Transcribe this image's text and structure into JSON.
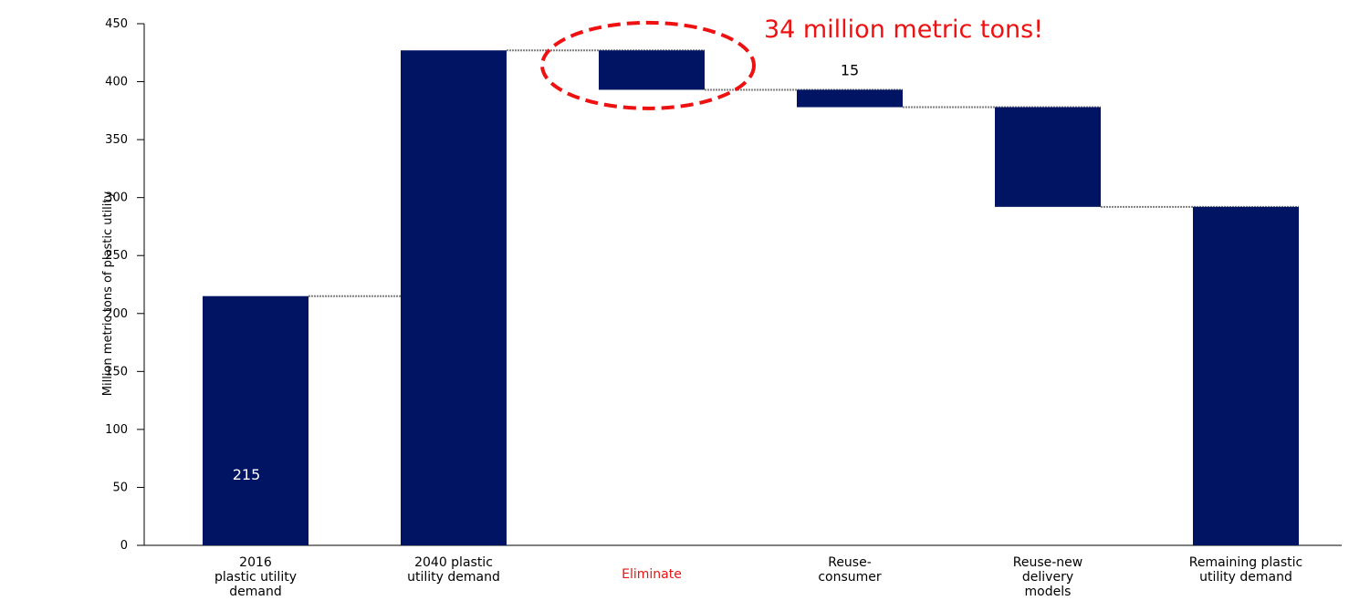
{
  "chart_data": {
    "type": "bar",
    "subtype": "waterfall",
    "ylabel": "Million metric tons of plastic utility",
    "ylim": [
      0,
      450
    ],
    "yticks": [
      0,
      50,
      100,
      150,
      200,
      250,
      300,
      350,
      400,
      450
    ],
    "grid": false,
    "categories": [
      [
        "2016",
        "plastic utility",
        "demand"
      ],
      [
        "2040 plastic",
        "utility demand"
      ],
      [
        "Eliminate"
      ],
      [
        "Reuse-",
        "consumer"
      ],
      [
        "Reuse-new",
        "delivery",
        "models"
      ],
      [
        "Remaining plastic",
        "utility demand"
      ]
    ],
    "bars": [
      {
        "kind": "total",
        "low": 0,
        "high": 215
      },
      {
        "kind": "total",
        "low": 0,
        "high": 427
      },
      {
        "kind": "decrease",
        "low": 393,
        "high": 427
      },
      {
        "kind": "decrease",
        "low": 378,
        "high": 393
      },
      {
        "kind": "decrease",
        "low": 292,
        "high": 378
      },
      {
        "kind": "total",
        "low": 0,
        "high": 292
      }
    ],
    "data_labels": [
      {
        "bar": 0,
        "text": "215",
        "placement": "inside"
      },
      {
        "bar": 3,
        "text": "15",
        "placement": "above"
      }
    ],
    "highlight_category": 2,
    "annotation": {
      "text": "34 million metric tons!",
      "target_bar": 2
    },
    "colors": {
      "bar": "#001464",
      "connector": "#7f7f7f",
      "highlight": "#ee1111",
      "axis": "#000000"
    }
  }
}
